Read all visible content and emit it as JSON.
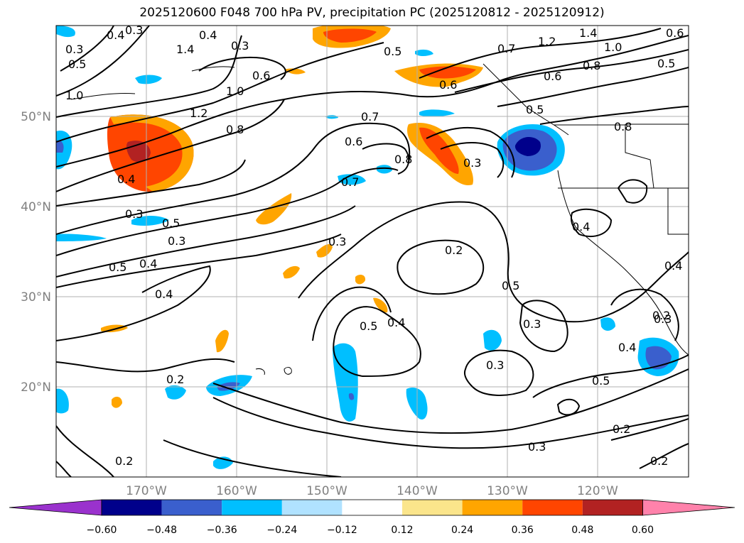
{
  "title": "2025120600 F048 700 hPa PV, precipitation PC (2025120812 - 2025120912)",
  "map": {
    "latitude_labels": [
      "50°N",
      "40°N",
      "30°N",
      "20°N"
    ],
    "longitude_labels": [
      "170°W",
      "160°W",
      "150°W",
      "140°W",
      "130°W",
      "120°W"
    ],
    "contour_labels": [
      "0.4",
      "1.0",
      "1.4",
      "0.3",
      "0.5",
      "0.6",
      "1.0",
      "1.2",
      "0.8",
      "0.5",
      "0.7",
      "0.6",
      "0.8",
      "0.7",
      "0.6",
      "0.8",
      "0.4",
      "0.3",
      "0.5",
      "0.3",
      "0.3",
      "0.5",
      "0.4",
      "0.4",
      "0.2",
      "0.5",
      "0.4",
      "0.2",
      "0.3",
      "0.5",
      "0.3",
      "0.2",
      "0.3",
      "0.5",
      "0.4",
      "0.3",
      "0.2",
      "0.2",
      "1.2",
      "1.0",
      "1.4",
      "0.8",
      "0.6",
      "0.6",
      "0.4",
      "0.4",
      "0.5",
      "0.5",
      "0.2",
      "0.7",
      "0.3",
      "0.4",
      "0.3",
      "0.3"
    ]
  },
  "colorbar": {
    "tick_labels": [
      "−0.60",
      "−0.48",
      "−0.36",
      "−0.24",
      "−0.12",
      "0.12",
      "0.24",
      "0.36",
      "0.48",
      "0.60"
    ],
    "colors": [
      "#9a32cd",
      "#00008b",
      "#3a5fcd",
      "#00bfff",
      "#b0e2ff",
      "#ffffff",
      "#fbe58b",
      "#ffa500",
      "#ff4500",
      "#b22222",
      "#ff82ab"
    ]
  }
}
